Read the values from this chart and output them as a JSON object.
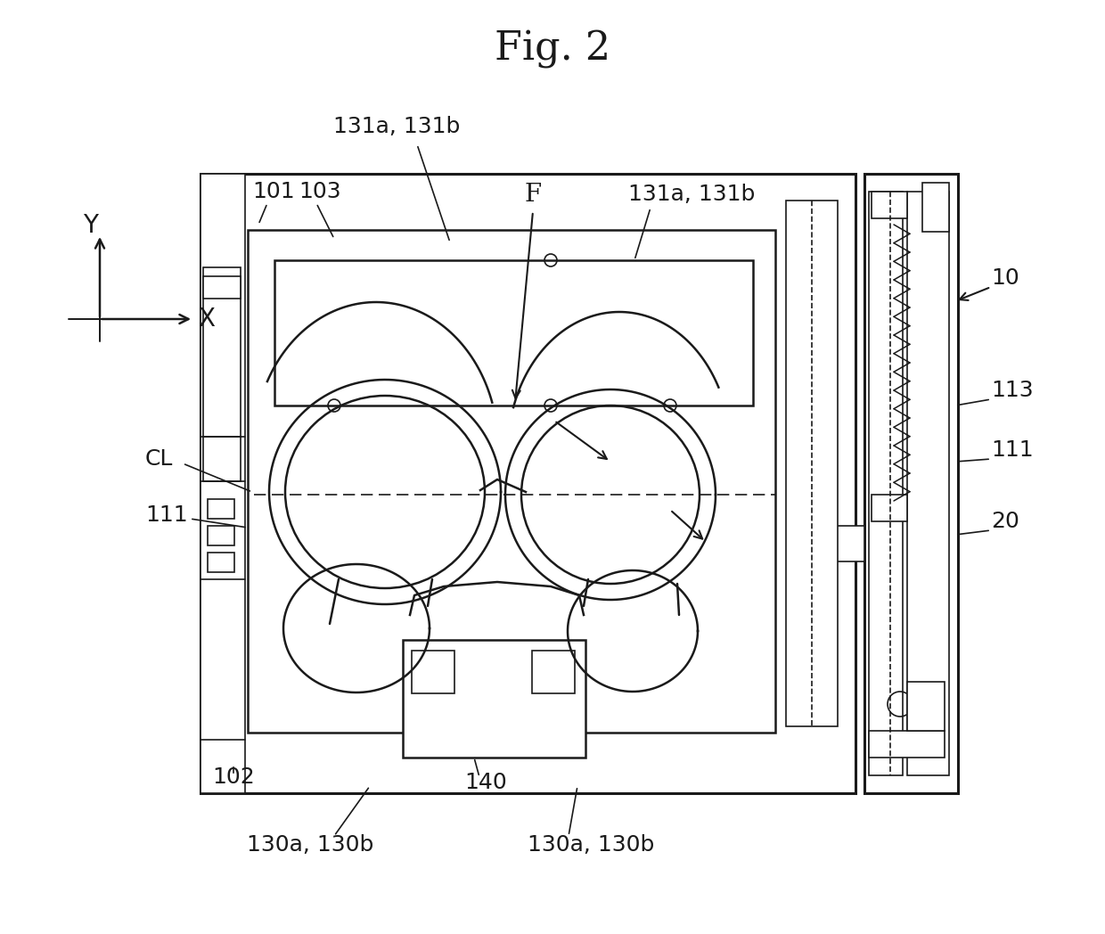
{
  "title": "Fig. 2",
  "bg_color": "#ffffff",
  "line_color": "#1a1a1a",
  "title_fontsize": 32,
  "label_fontsize": 18,
  "fig_width": 12.4,
  "fig_height": 10.48,
  "dpi": 100,
  "labels": {
    "title": "Fig. 2",
    "ref_101": "101",
    "ref_102": "102",
    "ref_103": "103",
    "ref_10": "10",
    "ref_20": "20",
    "ref_111_left": "111",
    "ref_111_right": "111",
    "ref_113": "113",
    "ref_131ab_top": "131a, 131b",
    "ref_131ab_right": "131a, 131b",
    "ref_130ab_left": "130a, 130b",
    "ref_130ab_right": "130a, 130b",
    "ref_140": "140",
    "ref_F": "F",
    "ref_CL": "CL",
    "ref_X": "X",
    "ref_Y": "Y"
  }
}
